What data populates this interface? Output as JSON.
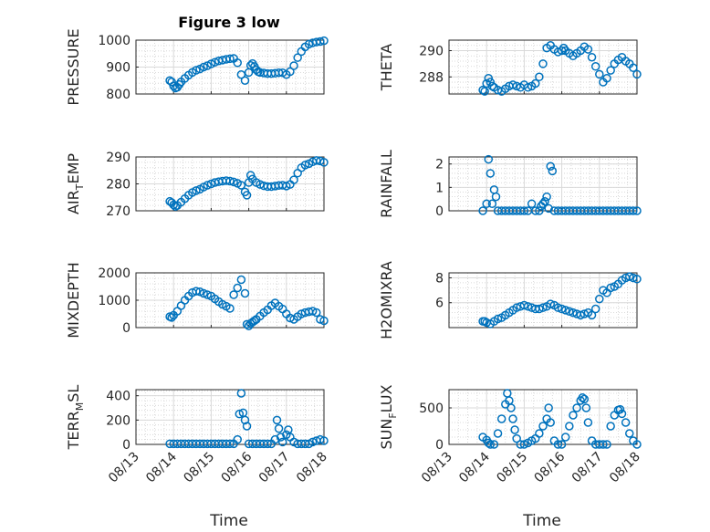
{
  "title": "Figure 3 low",
  "xlabel": "Time",
  "marker_color": "#0072BD",
  "chart_data": [
    {
      "type": "scatter",
      "ylabel": "PRESSURE",
      "ylim": [
        800,
        1000
      ],
      "yticks": [
        800,
        900,
        1000
      ],
      "x": [
        0.9,
        0.95,
        1.0,
        1.05,
        1.1,
        1.15,
        1.2,
        1.3,
        1.4,
        1.5,
        1.6,
        1.7,
        1.8,
        1.9,
        2.0,
        2.1,
        2.2,
        2.3,
        2.4,
        2.5,
        2.6,
        2.7,
        2.8,
        2.9,
        3.0,
        3.05,
        3.1,
        3.15,
        3.2,
        3.25,
        3.3,
        3.4,
        3.5,
        3.6,
        3.7,
        3.8,
        3.9,
        4.0,
        4.1,
        4.2,
        4.3,
        4.4,
        4.5,
        4.6,
        4.7,
        4.8,
        4.9,
        5.0
      ],
      "values": [
        850,
        845,
        830,
        822,
        825,
        835,
        845,
        858,
        870,
        880,
        888,
        893,
        900,
        905,
        912,
        918,
        923,
        926,
        929,
        931,
        932,
        916,
        872,
        850,
        880,
        906,
        913,
        902,
        890,
        883,
        880,
        878,
        876,
        876,
        877,
        879,
        879,
        872,
        883,
        905,
        935,
        958,
        975,
        985,
        990,
        993,
        995,
        998
      ]
    },
    {
      "type": "scatter",
      "ylabel": "THETA",
      "ylim": [
        286.7,
        290.8
      ],
      "yticks": [
        288,
        290
      ],
      "x": [
        0.9,
        0.95,
        1.0,
        1.05,
        1.1,
        1.15,
        1.2,
        1.3,
        1.4,
        1.5,
        1.6,
        1.7,
        1.8,
        1.9,
        2.0,
        2.1,
        2.2,
        2.3,
        2.4,
        2.5,
        2.6,
        2.7,
        2.8,
        2.9,
        3.0,
        3.05,
        3.1,
        3.2,
        3.3,
        3.4,
        3.5,
        3.6,
        3.7,
        3.8,
        3.9,
        4.0,
        4.1,
        4.2,
        4.3,
        4.4,
        4.5,
        4.6,
        4.7,
        4.8,
        4.9,
        5.0
      ],
      "values": [
        287.0,
        286.9,
        287.5,
        287.9,
        287.6,
        287.3,
        287.2,
        287.0,
        286.9,
        287.1,
        287.3,
        287.4,
        287.3,
        287.2,
        287.4,
        287.2,
        287.3,
        287.5,
        288.0,
        289.0,
        290.2,
        290.4,
        290.1,
        289.9,
        290.0,
        290.2,
        290.0,
        289.8,
        289.6,
        289.8,
        290.0,
        290.3,
        290.1,
        289.5,
        288.8,
        288.2,
        287.6,
        287.9,
        288.5,
        289.0,
        289.3,
        289.5,
        289.2,
        289.0,
        288.7,
        288.2
      ]
    },
    {
      "type": "scatter",
      "ylabel": "AIR_TEMP",
      "ylim": [
        270,
        290
      ],
      "yticks": [
        270,
        280,
        290
      ],
      "x": [
        0.9,
        0.95,
        1.0,
        1.05,
        1.1,
        1.2,
        1.3,
        1.4,
        1.5,
        1.6,
        1.7,
        1.8,
        1.9,
        2.0,
        2.1,
        2.2,
        2.3,
        2.4,
        2.5,
        2.6,
        2.7,
        2.8,
        2.9,
        2.95,
        3.0,
        3.05,
        3.1,
        3.2,
        3.3,
        3.4,
        3.5,
        3.6,
        3.7,
        3.8,
        3.9,
        4.0,
        4.1,
        4.2,
        4.3,
        4.4,
        4.5,
        4.6,
        4.7,
        4.8,
        4.9,
        5.0
      ],
      "values": [
        273.5,
        273.0,
        272.2,
        271.6,
        272.0,
        273.2,
        274.5,
        275.8,
        276.8,
        277.5,
        278.0,
        278.8,
        279.5,
        280.0,
        280.5,
        280.8,
        281.0,
        281.2,
        281.0,
        280.7,
        280.2,
        279.5,
        277.0,
        275.8,
        280.5,
        283.2,
        281.8,
        280.5,
        279.8,
        279.3,
        279.0,
        279.0,
        279.2,
        279.4,
        279.5,
        279.2,
        279.8,
        281.5,
        284.0,
        286.0,
        287.0,
        287.5,
        288.2,
        288.7,
        288.5,
        288.0
      ]
    },
    {
      "type": "scatter",
      "ylabel": "RAINFALL",
      "ylim": [
        0,
        2.3
      ],
      "yticks": [
        0,
        1,
        2
      ],
      "x": [
        0.9,
        1.0,
        1.05,
        1.1,
        1.15,
        1.2,
        1.25,
        1.3,
        1.4,
        1.5,
        1.6,
        1.7,
        1.8,
        1.9,
        2.0,
        2.1,
        2.2,
        2.3,
        2.4,
        2.45,
        2.5,
        2.55,
        2.6,
        2.65,
        2.7,
        2.75,
        2.8,
        2.9,
        3.0,
        3.1,
        3.2,
        3.3,
        3.4,
        3.5,
        3.6,
        3.7,
        3.8,
        3.9,
        4.0,
        4.1,
        4.2,
        4.3,
        4.4,
        4.5,
        4.6,
        4.7,
        4.8,
        4.9,
        5.0
      ],
      "values": [
        0,
        0.3,
        2.2,
        1.6,
        0.3,
        0.9,
        0.6,
        0,
        0,
        0,
        0,
        0,
        0,
        0,
        0,
        0,
        0.3,
        0,
        0,
        0.2,
        0.3,
        0.4,
        0.6,
        0.1,
        1.9,
        1.7,
        0,
        0,
        0,
        0,
        0,
        0,
        0,
        0,
        0,
        0,
        0,
        0,
        0,
        0,
        0,
        0,
        0,
        0,
        0,
        0,
        0,
        0,
        0
      ]
    },
    {
      "type": "scatter",
      "ylabel": "MIXDEPTH",
      "ylim": [
        0,
        2000
      ],
      "yticks": [
        0,
        1000,
        2000
      ],
      "x": [
        0.9,
        0.95,
        1.0,
        1.1,
        1.2,
        1.3,
        1.4,
        1.5,
        1.6,
        1.7,
        1.8,
        1.9,
        2.0,
        2.1,
        2.2,
        2.3,
        2.4,
        2.5,
        2.6,
        2.7,
        2.8,
        2.9,
        2.95,
        3.0,
        3.05,
        3.1,
        3.15,
        3.2,
        3.3,
        3.4,
        3.5,
        3.6,
        3.7,
        3.8,
        3.9,
        4.0,
        4.1,
        4.2,
        4.3,
        4.4,
        4.5,
        4.6,
        4.7,
        4.8,
        4.9,
        5.0
      ],
      "values": [
        400,
        370,
        450,
        600,
        800,
        1000,
        1150,
        1280,
        1330,
        1310,
        1250,
        1200,
        1150,
        1050,
        950,
        850,
        780,
        700,
        1200,
        1450,
        1750,
        1250,
        120,
        60,
        150,
        200,
        250,
        300,
        420,
        550,
        650,
        800,
        900,
        780,
        680,
        500,
        350,
        300,
        400,
        500,
        550,
        580,
        600,
        550,
        300,
        250
      ]
    },
    {
      "type": "scatter",
      "ylabel": "H2OMIXRA",
      "ylim": [
        4,
        8.4
      ],
      "yticks": [
        6,
        8
      ],
      "x": [
        0.9,
        0.95,
        1.0,
        1.1,
        1.2,
        1.3,
        1.4,
        1.5,
        1.6,
        1.7,
        1.8,
        1.9,
        2.0,
        2.1,
        2.2,
        2.3,
        2.4,
        2.5,
        2.6,
        2.7,
        2.8,
        2.9,
        3.0,
        3.1,
        3.2,
        3.3,
        3.4,
        3.5,
        3.6,
        3.7,
        3.8,
        3.9,
        4.0,
        4.1,
        4.2,
        4.3,
        4.4,
        4.5,
        4.6,
        4.7,
        4.8,
        4.9,
        5.0
      ],
      "values": [
        4.5,
        4.5,
        4.4,
        4.3,
        4.5,
        4.7,
        4.8,
        5.0,
        5.2,
        5.4,
        5.6,
        5.7,
        5.8,
        5.7,
        5.6,
        5.5,
        5.5,
        5.6,
        5.7,
        5.9,
        5.8,
        5.6,
        5.5,
        5.4,
        5.3,
        5.2,
        5.1,
        5.0,
        5.1,
        5.2,
        5.0,
        5.5,
        6.3,
        7.0,
        6.8,
        7.2,
        7.3,
        7.5,
        7.8,
        8.0,
        8.1,
        8.0,
        7.9
      ]
    },
    {
      "type": "scatter",
      "ylabel": "TERR_MSL",
      "ylim": [
        0,
        450
      ],
      "yticks": [
        0,
        200,
        400
      ],
      "x": [
        0.9,
        1.0,
        1.1,
        1.2,
        1.3,
        1.4,
        1.5,
        1.6,
        1.7,
        1.8,
        1.9,
        2.0,
        2.1,
        2.2,
        2.3,
        2.4,
        2.5,
        2.6,
        2.7,
        2.75,
        2.8,
        2.85,
        2.9,
        2.95,
        3.0,
        3.1,
        3.2,
        3.3,
        3.4,
        3.5,
        3.6,
        3.7,
        3.75,
        3.8,
        3.85,
        3.9,
        4.0,
        4.05,
        4.1,
        4.2,
        4.3,
        4.4,
        4.5,
        4.6,
        4.7,
        4.8,
        4.9,
        5.0
      ],
      "values": [
        5,
        5,
        5,
        5,
        5,
        5,
        5,
        5,
        5,
        5,
        5,
        5,
        5,
        5,
        5,
        5,
        5,
        5,
        40,
        250,
        420,
        260,
        200,
        150,
        5,
        5,
        5,
        5,
        5,
        5,
        5,
        40,
        200,
        130,
        60,
        20,
        80,
        120,
        60,
        20,
        5,
        5,
        5,
        5,
        20,
        30,
        40,
        30
      ]
    },
    {
      "type": "scatter",
      "ylabel": "SUN_FLUX",
      "ylim": [
        0,
        750
      ],
      "yticks": [
        0,
        500
      ],
      "x": [
        0.9,
        1.0,
        1.05,
        1.1,
        1.2,
        1.3,
        1.4,
        1.5,
        1.55,
        1.6,
        1.65,
        1.7,
        1.75,
        1.8,
        1.9,
        2.0,
        2.1,
        2.2,
        2.3,
        2.4,
        2.5,
        2.6,
        2.65,
        2.7,
        2.8,
        2.9,
        3.0,
        3.1,
        3.2,
        3.3,
        3.4,
        3.5,
        3.55,
        3.6,
        3.65,
        3.7,
        3.8,
        3.9,
        4.0,
        4.1,
        4.2,
        4.3,
        4.4,
        4.5,
        4.55,
        4.6,
        4.7,
        4.8,
        4.9,
        5.0
      ],
      "values": [
        100,
        60,
        20,
        0,
        0,
        150,
        350,
        550,
        700,
        600,
        500,
        350,
        200,
        80,
        0,
        0,
        20,
        50,
        80,
        150,
        250,
        350,
        500,
        300,
        50,
        0,
        0,
        100,
        250,
        400,
        500,
        600,
        640,
        620,
        500,
        300,
        50,
        0,
        0,
        0,
        0,
        250,
        400,
        470,
        480,
        420,
        300,
        150,
        50,
        0
      ]
    }
  ],
  "xticklabels": [
    "08/13",
    "08/14",
    "08/15",
    "08/16",
    "08/17",
    "08/18"
  ]
}
